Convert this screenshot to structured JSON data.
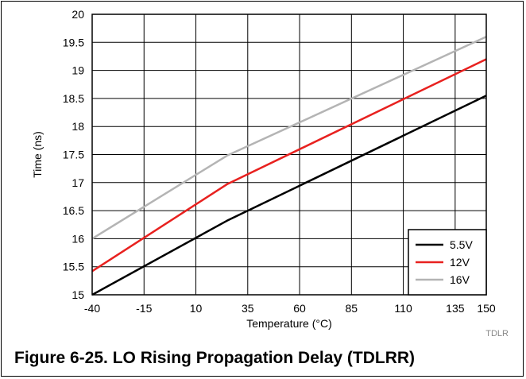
{
  "caption": "Figure 6-25. LO Rising Propagation Delay (TDLRR)",
  "figure_code": "TDLR",
  "chart_data": {
    "type": "line",
    "title": "",
    "xlabel": "Temperature (°C)",
    "ylabel": "Time (ns)",
    "xlim": [
      -40,
      150
    ],
    "ylim": [
      15,
      20
    ],
    "xticks": [
      -40,
      -15,
      10,
      35,
      60,
      85,
      110,
      135,
      150
    ],
    "yticks": [
      15,
      15.5,
      16,
      16.5,
      17,
      17.5,
      18,
      18.5,
      19,
      19.5,
      20
    ],
    "xtick_labels": [
      "-40",
      "-15",
      "10",
      "35",
      "60",
      "85",
      "110",
      "135",
      "150"
    ],
    "ytick_labels": [
      "15",
      "15.5",
      "16",
      "16.5",
      "17",
      "17.5",
      "18",
      "18.5",
      "19",
      "19.5",
      "20"
    ],
    "grid": true,
    "legend_position": "bottom-right",
    "series": [
      {
        "name": "5.5V",
        "color": "#000000",
        "x": [
          -40,
          25,
          150
        ],
        "y": [
          15.0,
          16.32,
          18.55
        ]
      },
      {
        "name": "12V",
        "color": "#e8211f",
        "x": [
          -40,
          25,
          150
        ],
        "y": [
          15.42,
          16.97,
          19.2
        ]
      },
      {
        "name": "16V",
        "color": "#b4b4b4",
        "x": [
          -40,
          25,
          150
        ],
        "y": [
          16.0,
          17.48,
          19.6
        ]
      }
    ]
  }
}
